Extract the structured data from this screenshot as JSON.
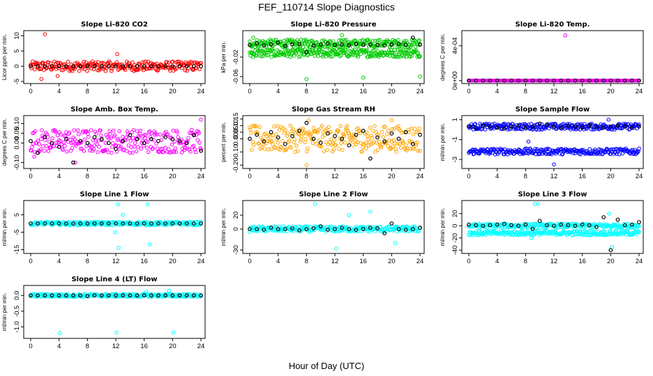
{
  "figure": {
    "title": "FEF_110714  Slope Diagnostics",
    "xlabel": "Hour of Day (UTC)"
  },
  "chart_data": [
    {
      "type": "scatter",
      "title": "Slope Li-820 CO2",
      "ylabel": "Licor ppm per min.",
      "color": "#ff0000",
      "xlim": [
        0,
        24
      ],
      "xticks": [
        0,
        4,
        8,
        12,
        16,
        20,
        24
      ],
      "ylim": [
        -5,
        11
      ],
      "yticks": [
        {
          "v": -5,
          "label": "-5"
        },
        {
          "v": 0,
          "label": "0"
        },
        {
          "v": 5,
          "label": "5"
        },
        {
          "v": 10,
          "label": "10"
        }
      ],
      "series": [
        {
          "name": "all samples",
          "color": "#ff0000",
          "spread": 1.6,
          "bands": [
            0
          ],
          "outliers": [
            [
              2,
              10.5
            ],
            [
              1.5,
              -4.2
            ],
            [
              3.8,
              -3.2
            ],
            [
              12.2,
              4.0
            ]
          ]
        },
        {
          "name": "hourly",
          "color": "#000000",
          "values": [
            0,
            0,
            0,
            0,
            0,
            0,
            0,
            0,
            0,
            0,
            0,
            0,
            0,
            0,
            0,
            0,
            0,
            0,
            0,
            0,
            0,
            0,
            0,
            0,
            0
          ]
        }
      ]
    },
    {
      "type": "scatter",
      "title": "Slope Li-820 Pressure",
      "ylabel": "kPa per min.",
      "color": "#00cc00",
      "xlim": [
        0,
        24
      ],
      "xticks": [
        0,
        4,
        8,
        12,
        16,
        20,
        24
      ],
      "ylim": [
        -0.07,
        0.03
      ],
      "yticks": [
        {
          "v": -0.06,
          "label": "-0.06"
        },
        {
          "v": -0.02,
          "label": "-0.02"
        }
      ],
      "series": [
        {
          "name": "all samples",
          "color": "#00cc00",
          "spread": 0.008,
          "bands": [
            0.008,
            -0.012
          ],
          "outliers": [
            [
              8,
              -0.065
            ],
            [
              13,
              0.025
            ],
            [
              16,
              -0.062
            ],
            [
              24,
              -0.06
            ],
            [
              0.5,
              0.02
            ]
          ]
        },
        {
          "name": "hourly",
          "color": "#000000",
          "values": [
            0.005,
            0.008,
            0.004,
            0.006,
            0.01,
            0.003,
            0.006,
            0.007,
            -0.01,
            0.004,
            0.006,
            0.008,
            0.005,
            0.006,
            0.004,
            0.007,
            0.005,
            0.006,
            0.005,
            0.004,
            0.006,
            0.007,
            0.005,
            0.02,
            0.006
          ]
        }
      ]
    },
    {
      "type": "scatter",
      "title": "Slope Li-820 Temp.",
      "ylabel": "degrees C per min.",
      "color": "#ff00ff",
      "xlim": [
        0,
        24
      ],
      "xticks": [
        0,
        4,
        8,
        12,
        16,
        20,
        24
      ],
      "ylim": [
        -1e-05,
        0.00055
      ],
      "yticks": [
        {
          "v": 0,
          "label": "0e+00"
        },
        {
          "v": 0.0004,
          "label": "4e-04"
        }
      ],
      "series": [
        {
          "name": "all samples",
          "color": "#ff00ff",
          "spread": 0,
          "bands": [
            0
          ],
          "outliers": [
            [
              13.6,
              0.00052
            ]
          ]
        },
        {
          "name": "hourly",
          "color": "#000000",
          "values": [
            0,
            0,
            0,
            0,
            0,
            0,
            0,
            0,
            0,
            0,
            0,
            0,
            0,
            0,
            0,
            0,
            0,
            0,
            0,
            0,
            0,
            0,
            0,
            0,
            0
          ]
        }
      ]
    },
    {
      "type": "scatter",
      "title": "Slope Amb. Box Temp.",
      "ylabel": "degrees C per min.",
      "color": "#ff00ff",
      "xlim": [
        0,
        24
      ],
      "xticks": [
        0,
        4,
        8,
        12,
        16,
        20,
        24
      ],
      "ylim": [
        -0.12,
        0.13
      ],
      "yticks": [
        {
          "v": -0.1,
          "label": "-0.10"
        },
        {
          "v": 0,
          "label": "0.00"
        },
        {
          "v": 0.05,
          "label": "0.05"
        },
        {
          "v": 0.1,
          "label": "0.10"
        }
      ],
      "series": [
        {
          "name": "all samples",
          "color": "#ff00ff",
          "spread": 0.06,
          "bands": [
            0.01
          ],
          "outliers": [
            [
              6.3,
              -0.1
            ],
            [
              24,
              0.12
            ],
            [
              0.5,
              -0.07
            ]
          ]
        },
        {
          "name": "hourly",
          "color": "#000000",
          "values": [
            0.01,
            -0.05,
            0.03,
            0.0,
            -0.02,
            0.02,
            -0.1,
            0.01,
            0.0,
            0.03,
            0.02,
            0.0,
            -0.03,
            0.01,
            0.04,
            0.02,
            0.0,
            0.02,
            0.01,
            0.03,
            0.02,
            0.01,
            0.0,
            0.04,
            -0.04
          ]
        }
      ]
    },
    {
      "type": "scatter",
      "title": "Slope Gas Stream RH",
      "ylabel": "percent per min.",
      "color": "#ffa500",
      "xlim": [
        0,
        24
      ],
      "xticks": [
        0,
        4,
        8,
        12,
        16,
        20,
        24
      ],
      "ylim": [
        -0.21,
        0.16
      ],
      "yticks": [
        {
          "v": -0.2,
          "label": "-0.20"
        },
        {
          "v": -0.1,
          "label": "-0.10"
        },
        {
          "v": 0,
          "label": "0.00"
        },
        {
          "v": 0.05,
          "label": "0.05"
        },
        {
          "v": 0.1,
          "label": "0.10"
        },
        {
          "v": 0.15,
          "label": "0.15"
        }
      ],
      "series": [
        {
          "name": "all samples",
          "color": "#ffa500",
          "spread": 0.1,
          "bands": [
            0.0
          ],
          "outliers": [
            [
              8,
              -0.2
            ],
            [
              8.3,
              0.14
            ],
            [
              20,
              0.14
            ]
          ]
        },
        {
          "name": "hourly",
          "color": "#000000",
          "values": [
            0.0,
            0.03,
            -0.02,
            0.05,
            0.01,
            -0.04,
            0.02,
            0.06,
            0.12,
            0.0,
            -0.03,
            0.04,
            0.02,
            0.0,
            -0.05,
            0.03,
            0.06,
            -0.15,
            0.01,
            -0.02,
            0.04,
            0.0,
            0.05,
            -0.04,
            0.03
          ]
        }
      ]
    },
    {
      "type": "scatter",
      "title": "Slope Sample Flow",
      "ylabel": "ml/min per min.",
      "color": "#0000ff",
      "xlim": [
        0,
        24
      ],
      "xticks": [
        0,
        4,
        8,
        12,
        16,
        20,
        24
      ],
      "ylim": [
        -3.7,
        1.2
      ],
      "yticks": [
        {
          "v": -3,
          "label": "-3"
        },
        {
          "v": -1,
          "label": "-1"
        },
        {
          "v": 1,
          "label": "1"
        }
      ],
      "series": [
        {
          "name": "all samples",
          "color": "#0000ff",
          "spread": 0.3,
          "bands": [
            0.3,
            -2.2
          ],
          "outliers": [
            [
              12,
              -3.5
            ],
            [
              19.7,
              1.0
            ],
            [
              8.4,
              -1.2
            ]
          ]
        },
        {
          "name": "hourly",
          "color": "#000000",
          "values": [
            0.3,
            0.2,
            0.4,
            0.3,
            0.2,
            0.1,
            0.3,
            0.4,
            0.2,
            0.3,
            0.6,
            0.5,
            0.3,
            0.2,
            0.4,
            0.3,
            0.2,
            0.4,
            0.3,
            0.2,
            0.3,
            0.4,
            0.3,
            0.2,
            0.3
          ]
        }
      ]
    },
    {
      "type": "scatter",
      "title": "Slope Line 1 Flow",
      "ylabel": "ml/min per min.",
      "color": "#00ffff",
      "xlim": [
        0,
        24
      ],
      "xticks": [
        0,
        4,
        8,
        12,
        16,
        20,
        24
      ],
      "ylim": [
        -16,
        12
      ],
      "yticks": [
        {
          "v": -15,
          "label": "-15"
        },
        {
          "v": -5,
          "label": "-5"
        },
        {
          "v": 5,
          "label": "5"
        }
      ],
      "series": [
        {
          "name": "all samples",
          "color": "#00ffff",
          "spread": 1.0,
          "bands": [
            0
          ],
          "outliers": [
            [
              12.3,
              11
            ],
            [
              12.4,
              -14
            ],
            [
              16.5,
              11
            ],
            [
              16.8,
              -12
            ],
            [
              11.9,
              -5
            ],
            [
              13,
              5
            ]
          ]
        },
        {
          "name": "hourly",
          "color": "#000000",
          "values": [
            0,
            0,
            0,
            0,
            0,
            0,
            0,
            0,
            0,
            0,
            0,
            0,
            0,
            0,
            0,
            0,
            0,
            0,
            0,
            0,
            0,
            0,
            0,
            0,
            0
          ]
        }
      ]
    },
    {
      "type": "scatter",
      "title": "Slope Line 2 Flow",
      "ylabel": "ml/min per min.",
      "color": "#00ffff",
      "xlim": [
        0,
        24
      ],
      "xticks": [
        0,
        4,
        8,
        12,
        16,
        20,
        24
      ],
      "ylim": [
        -32,
        38
      ],
      "yticks": [
        {
          "v": -30,
          "label": "-30"
        },
        {
          "v": 0,
          "label": "0"
        },
        {
          "v": 20,
          "label": "20"
        }
      ],
      "series": [
        {
          "name": "all samples",
          "color": "#00ffff",
          "spread": 4,
          "bands": [
            0
          ],
          "outliers": [
            [
              9.2,
              36
            ],
            [
              12.2,
              -28
            ],
            [
              20.5,
              -20
            ],
            [
              17,
              25
            ],
            [
              14,
              20
            ]
          ]
        },
        {
          "name": "hourly",
          "color": "#000000",
          "values": [
            0,
            0,
            -1,
            2,
            0,
            0,
            1,
            -2,
            0,
            1,
            4,
            -1,
            0,
            2,
            0,
            -1,
            0,
            2,
            1,
            -6,
            8,
            0,
            -1,
            0,
            2
          ]
        }
      ]
    },
    {
      "type": "scatter",
      "title": "Slope Line 3 Flow",
      "ylabel": "ml/min per min.",
      "color": "#00ffff",
      "xlim": [
        0,
        24
      ],
      "xticks": [
        0,
        4,
        8,
        12,
        16,
        20,
        24
      ],
      "ylim": [
        -42,
        38
      ],
      "yticks": [
        {
          "v": -40,
          "label": "-40"
        },
        {
          "v": -20,
          "label": "-20"
        },
        {
          "v": 0,
          "label": "0"
        },
        {
          "v": 20,
          "label": "20"
        }
      ],
      "series": [
        {
          "name": "all samples",
          "color": "#00ffff",
          "spread": 3.5,
          "bands": [
            0,
            -12
          ],
          "outliers": [
            [
              9.3,
              36
            ],
            [
              9.7,
              36
            ],
            [
              20.2,
              -35
            ],
            [
              8.8,
              -20
            ],
            [
              19.8,
              20
            ]
          ]
        },
        {
          "name": "hourly",
          "color": "#000000",
          "values": [
            2,
            1,
            0,
            1,
            2,
            3,
            1,
            0,
            2,
            -5,
            8,
            1,
            0,
            2,
            1,
            0,
            2,
            1,
            -2,
            14,
            -40,
            10,
            1,
            2,
            6
          ]
        }
      ]
    },
    {
      "type": "scatter",
      "title": "Slope Line 4 (LT) Flow",
      "ylabel": "ml/min per min.",
      "color": "#00ffff",
      "xlim": [
        0,
        24
      ],
      "xticks": [
        0,
        4,
        8,
        12,
        16,
        20,
        24
      ],
      "ylim": [
        -1.3,
        0.25
      ],
      "yticks": [
        {
          "v": -1,
          "label": "-1.0"
        },
        {
          "v": -0.5,
          "label": "-0.5"
        },
        {
          "v": 0,
          "label": "0.0"
        }
      ],
      "series": [
        {
          "name": "all samples",
          "color": "#00ffff",
          "spread": 0.05,
          "bands": [
            0
          ],
          "outliers": [
            [
              4.1,
              -1.2
            ],
            [
              12.1,
              -1.18
            ],
            [
              20.1,
              -1.18
            ],
            [
              16.3,
              0.12
            ],
            [
              19.5,
              0.15
            ]
          ]
        },
        {
          "name": "hourly",
          "color": "#000000",
          "values": [
            0,
            0,
            0,
            0,
            0,
            0,
            0,
            0,
            -0.02,
            0,
            0,
            0,
            0,
            0,
            0,
            0,
            0,
            0,
            0,
            0,
            0,
            0,
            0,
            0,
            0
          ]
        }
      ]
    }
  ]
}
